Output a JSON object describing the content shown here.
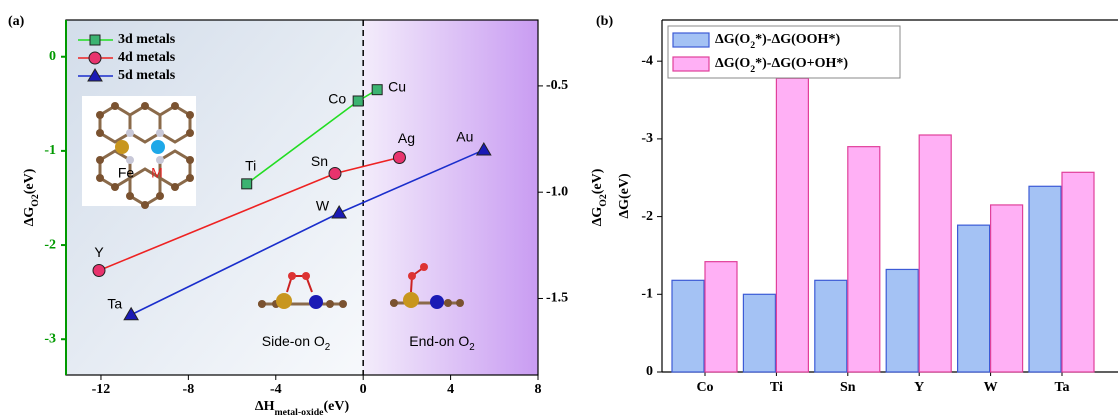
{
  "chart_data": [
    {
      "type": "line",
      "panel_label": "(a)",
      "xlabel": [
        "ΔH",
        "metal-oxide",
        "(eV)"
      ],
      "ylabel": [
        "ΔG",
        "O2",
        "(eV)"
      ],
      "y2label": [
        "ΔG",
        "O2",
        "(eV)"
      ],
      "xlim": [
        -13.6,
        8
      ],
      "xticks": [
        -12,
        -8,
        -4,
        0,
        4,
        8
      ],
      "ylim": [
        -3.38,
        0.39
      ],
      "yticks": [
        0,
        -1,
        -2,
        -3
      ],
      "ycolor": "#009900",
      "y2lim": [
        -1.86,
        -0.19
      ],
      "y2ticks": [
        -0.5,
        {
          "value": -1,
          "label": "-1.0"
        },
        -1.5
      ],
      "divider_x": 0,
      "series": [
        {
          "name": "3d metals",
          "color": "#22dd22",
          "marker": "square",
          "marker_color": "#3cb371",
          "x": [
            -5.33,
            -0.23,
            0.64
          ],
          "values": [
            -1.35,
            -0.47,
            -0.35
          ],
          "labels": [
            "Ti",
            "Co",
            "Cu"
          ]
        },
        {
          "name": "4d metals",
          "color": "#ee2222",
          "marker": "circle",
          "marker_color": "#e8336d",
          "x": [
            -12.09,
            -1.29,
            1.66
          ],
          "values": [
            -2.27,
            -1.24,
            -1.07
          ],
          "labels": [
            "Y",
            "Sn",
            "Ag"
          ]
        },
        {
          "name": "5d metals",
          "color": "#1a2ecc",
          "marker": "triangle",
          "marker_color": "#1a1ab5",
          "x": [
            -10.62,
            -1.1,
            5.52
          ],
          "values": [
            -2.74,
            -1.66,
            -0.99
          ],
          "labels": [
            "Ta",
            "W",
            "Au"
          ]
        }
      ],
      "annotations": {
        "side_on": "Side-on O2",
        "end_on": "End-on O2",
        "fe": "Fe",
        "m": "M"
      }
    },
    {
      "type": "bar",
      "panel_label": "(b)",
      "ylabel": "ΔG(eV)",
      "categories": [
        "Co",
        "Ti",
        "Sn",
        "Y",
        "W",
        "Ta"
      ],
      "ylim": [
        0,
        -4.53
      ],
      "yticks": [
        0,
        -1,
        -2,
        -3,
        -4
      ],
      "series": [
        {
          "name": "ΔG(O2*)-ΔG(OOH*)",
          "color": "#a4c2f4",
          "edge": "#3c5bd6",
          "values": [
            -1.18,
            -1.0,
            -1.18,
            -1.32,
            -1.89,
            -2.39
          ]
        },
        {
          "name": "ΔG(O2*)-ΔG(O+OH*)",
          "color": "#ffb0f5",
          "edge": "#e0409a",
          "values": [
            -1.42,
            -3.78,
            -2.9,
            -3.05,
            -2.15,
            -2.57
          ]
        }
      ]
    }
  ]
}
